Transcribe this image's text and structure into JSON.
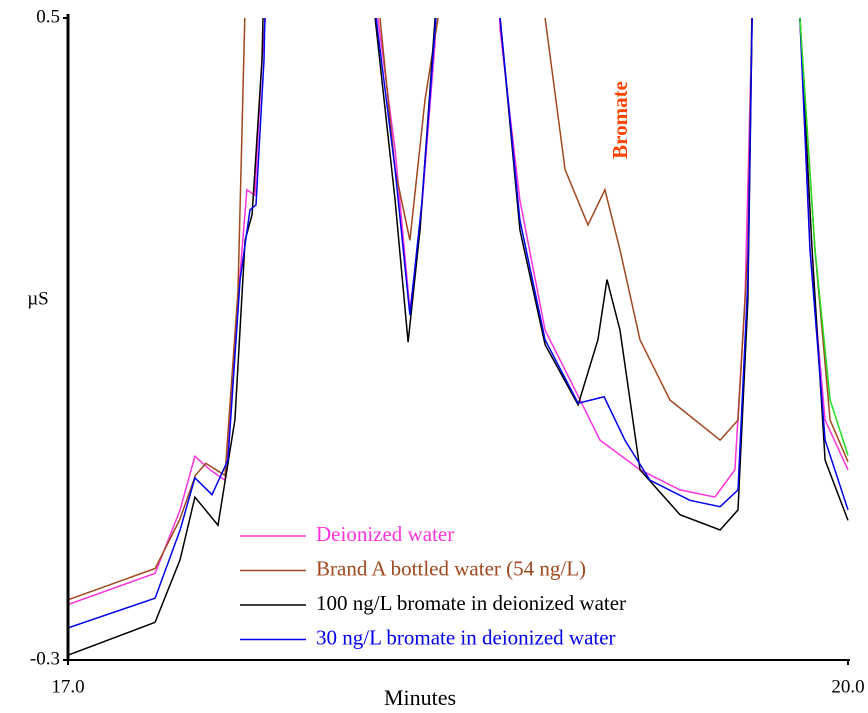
{
  "chart_data": {
    "type": "line",
    "y_label": "µS",
    "x_label": "Minutes",
    "annotation": "Bromate",
    "xlim": [
      17,
      20
    ],
    "ylim": [
      -0.3,
      0.5
    ],
    "xticks": [
      {
        "value": 17,
        "label": "17.0"
      },
      {
        "value": 20,
        "label": "20.0"
      }
    ],
    "yticks": [
      -0.3,
      0.5
    ],
    "series": [
      {
        "name": "Deionized water",
        "color": "#ff33dd",
        "x": [
          17.0,
          17.335,
          17.431,
          17.488,
          17.546,
          17.604,
          17.654,
          17.688,
          17.719,
          17.746,
          17.762,
          17.78,
          18.17,
          18.192,
          18.258,
          18.315,
          18.354,
          18.412,
          18.43,
          18.64,
          18.662,
          18.738,
          18.835,
          18.931,
          19.046,
          19.2,
          19.354,
          19.488,
          19.565,
          19.604,
          19.631,
          19.65,
          19.8,
          19.815,
          19.854,
          19.912,
          20.0
        ],
        "values": [
          -0.231,
          -0.192,
          -0.113,
          -0.046,
          -0.063,
          -0.076,
          0.149,
          0.286,
          0.279,
          0.448,
          0.51,
          0.7,
          0.7,
          0.5,
          0.336,
          0.136,
          0.236,
          0.47,
          0.7,
          0.7,
          0.485,
          0.273,
          0.111,
          0.049,
          -0.026,
          -0.063,
          -0.088,
          -0.097,
          -0.063,
          0.149,
          0.5,
          0.7,
          0.7,
          0.5,
          0.211,
          -0.001,
          -0.063
        ]
      },
      {
        "name": "Brand A bottled water (54 ng/L)",
        "color": "#a0481e",
        "x": [
          17.0,
          17.335,
          17.43,
          17.49,
          17.53,
          17.604,
          17.654,
          17.68,
          17.7,
          18.18,
          18.2,
          18.258,
          18.315,
          18.373,
          18.423,
          18.44,
          18.82,
          18.835,
          18.912,
          19.0,
          19.065,
          19.123,
          19.2,
          19.315,
          19.508,
          19.577,
          19.615,
          19.63,
          19.65,
          19.8,
          19.815,
          19.873,
          19.931,
          20.0
        ],
        "values": [
          -0.225,
          -0.186,
          -0.125,
          -0.07,
          -0.055,
          -0.07,
          0.16,
          0.5,
          0.7,
          0.7,
          0.5,
          0.311,
          0.223,
          0.398,
          0.5,
          0.7,
          0.7,
          0.5,
          0.311,
          0.242,
          0.286,
          0.211,
          0.099,
          0.024,
          -0.026,
          -0.001,
          0.211,
          0.5,
          0.7,
          0.7,
          0.5,
          0.211,
          -0.001,
          -0.053
        ]
      },
      {
        "name": "100 ng/L bromate in deionized water",
        "color": "#000000",
        "x": [
          17.0,
          17.335,
          17.431,
          17.488,
          17.577,
          17.642,
          17.681,
          17.708,
          17.746,
          17.765,
          18.16,
          18.181,
          18.258,
          18.308,
          18.354,
          18.412,
          18.43,
          18.64,
          18.662,
          18.738,
          18.835,
          18.962,
          19.038,
          19.073,
          19.123,
          19.2,
          19.354,
          19.508,
          19.577,
          19.615,
          19.631,
          19.65,
          19.8,
          19.815,
          19.862,
          19.912,
          20.0
        ],
        "values": [
          -0.294,
          -0.253,
          -0.175,
          -0.097,
          -0.132,
          -0.001,
          0.223,
          0.255,
          0.448,
          0.7,
          0.7,
          0.5,
          0.273,
          0.096,
          0.236,
          0.5,
          0.7,
          0.7,
          0.5,
          0.236,
          0.093,
          0.018,
          0.099,
          0.174,
          0.111,
          -0.063,
          -0.119,
          -0.138,
          -0.113,
          0.149,
          0.5,
          0.7,
          0.7,
          0.5,
          0.211,
          -0.051,
          -0.126
        ]
      },
      {
        "name": "30 ng/L bromate in deionized water",
        "color": "#0000ee",
        "x": [
          17.0,
          17.335,
          17.431,
          17.488,
          17.554,
          17.615,
          17.662,
          17.7,
          17.723,
          17.754,
          17.77,
          18.16,
          18.185,
          18.258,
          18.315,
          18.362,
          18.415,
          18.43,
          18.64,
          18.662,
          18.738,
          18.835,
          18.962,
          19.062,
          19.142,
          19.238,
          19.392,
          19.508,
          19.577,
          19.615,
          19.631,
          19.65,
          19.8,
          19.815,
          19.854,
          19.912,
          20.0
        ],
        "values": [
          -0.26,
          -0.223,
          -0.138,
          -0.073,
          -0.094,
          -0.051,
          0.174,
          0.261,
          0.267,
          0.448,
          0.7,
          0.7,
          0.5,
          0.311,
          0.13,
          0.273,
          0.5,
          0.7,
          0.7,
          0.5,
          0.248,
          0.099,
          0.02,
          0.028,
          -0.026,
          -0.076,
          -0.101,
          -0.109,
          -0.088,
          0.174,
          0.5,
          0.7,
          0.7,
          0.5,
          0.211,
          -0.026,
          -0.113
        ]
      },
      {
        "color": "#22dd22",
        "x": [
          19.8,
          19.815,
          19.873,
          19.931,
          20.0
        ],
        "values": [
          0.7,
          0.5,
          0.211,
          0.024,
          -0.045
        ]
      }
    ]
  }
}
